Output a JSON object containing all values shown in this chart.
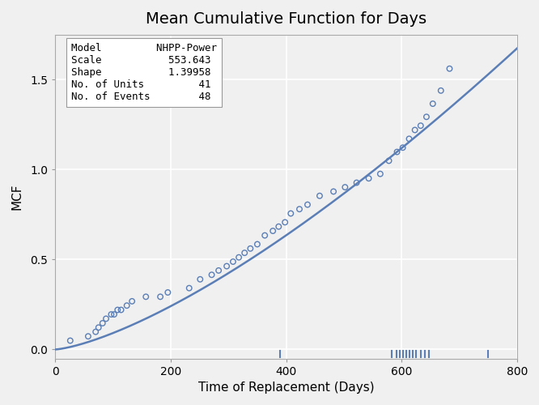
{
  "title": "Mean Cumulative Function for Days",
  "xlabel": "Time of Replacement (Days)",
  "ylabel": "MCF",
  "xlim": [
    0,
    800
  ],
  "ylim": [
    -0.05,
    1.75
  ],
  "yticks": [
    0.0,
    0.5,
    1.0,
    1.5
  ],
  "xticks": [
    0,
    200,
    400,
    600,
    800
  ],
  "model": "NHPP-Power",
  "scale": 553.643,
  "shape": 1.39958,
  "no_units": 41,
  "no_events": 48,
  "scatter_x": [
    26,
    57,
    70,
    75,
    82,
    88,
    97,
    102,
    108,
    114,
    124,
    133,
    157,
    182,
    195,
    232,
    251,
    271,
    283,
    297,
    308,
    318,
    328,
    338,
    350,
    363,
    377,
    387,
    398,
    408,
    423,
    437,
    458,
    482,
    502,
    522,
    543,
    563,
    578,
    592,
    602,
    613,
    623,
    633,
    643,
    654,
    668,
    683
  ],
  "scatter_y": [
    0.049,
    0.073,
    0.098,
    0.122,
    0.146,
    0.171,
    0.195,
    0.195,
    0.22,
    0.22,
    0.244,
    0.268,
    0.293,
    0.293,
    0.317,
    0.341,
    0.39,
    0.415,
    0.439,
    0.463,
    0.488,
    0.512,
    0.537,
    0.561,
    0.585,
    0.634,
    0.659,
    0.683,
    0.707,
    0.756,
    0.78,
    0.805,
    0.854,
    0.878,
    0.902,
    0.927,
    0.951,
    0.976,
    1.049,
    1.098,
    1.122,
    1.171,
    1.22,
    1.244,
    1.293,
    1.366,
    1.439,
    1.561
  ],
  "rug_marks": [
    390,
    583,
    591,
    597,
    602,
    608,
    614,
    619,
    625,
    633,
    640,
    648,
    750
  ],
  "line_color": "#5a7eb5",
  "scatter_color": "#5a7eb5",
  "rug_color": "#5a7eb5",
  "background_color": "#f0f0f0",
  "plot_bg_color": "#f0f0f0",
  "grid_color": "#ffffff",
  "box_color": "#ffffff",
  "title_fontsize": 14,
  "label_fontsize": 11,
  "tick_fontsize": 10,
  "info_fontsize": 9
}
